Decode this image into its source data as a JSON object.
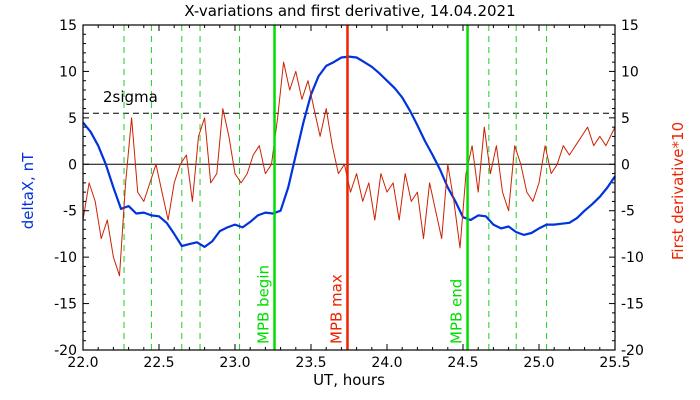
{
  "chart_data": {
    "type": "line",
    "title": "X-variations and first derivative, 14.04.2021",
    "xlabel": "UT, hours",
    "ylabel_left": "deltaX, nT",
    "ylabel_right": "First derivative*10",
    "xlim": [
      22.0,
      25.5
    ],
    "ylim": [
      -20,
      15
    ],
    "x_ticks": [
      "22.0",
      "22.5",
      "23.0",
      "23.5",
      "24.0",
      "24.5",
      "25.0",
      "25.5"
    ],
    "y_ticks": [
      "-20",
      "-15",
      "-10",
      "-5",
      "0",
      "5",
      "10",
      "15"
    ],
    "sigma_level": 5.5,
    "sigma_label": "2sigma",
    "green_dashed_x": [
      22.27,
      22.45,
      22.65,
      22.77,
      23.03,
      24.67,
      24.85,
      25.05
    ],
    "markers": [
      {
        "label": "MPB begin",
        "x": 23.26,
        "color": "#00dd00"
      },
      {
        "label": "MPB max",
        "x": 23.74,
        "color": "#ee2200"
      },
      {
        "label": "MPB end",
        "x": 24.53,
        "color": "#00dd00"
      }
    ],
    "series": [
      {
        "name": "deltaX",
        "color": "#0033dd",
        "x": [
          22.0,
          22.05,
          22.1,
          22.15,
          22.2,
          22.25,
          22.3,
          22.35,
          22.4,
          22.45,
          22.5,
          22.55,
          22.6,
          22.65,
          22.7,
          22.75,
          22.8,
          22.85,
          22.9,
          22.95,
          23.0,
          23.05,
          23.1,
          23.15,
          23.2,
          23.25,
          23.3,
          23.35,
          23.4,
          23.45,
          23.5,
          23.55,
          23.6,
          23.65,
          23.7,
          23.75,
          23.8,
          23.85,
          23.9,
          23.95,
          24.0,
          24.05,
          24.1,
          24.15,
          24.2,
          24.25,
          24.3,
          24.35,
          24.4,
          24.45,
          24.5,
          24.55,
          24.6,
          24.65,
          24.7,
          24.75,
          24.8,
          24.85,
          24.9,
          24.95,
          25.0,
          25.05,
          25.1,
          25.15,
          25.2,
          25.25,
          25.3,
          25.35,
          25.4,
          25.45,
          25.5
        ],
        "values": [
          4.5,
          3.5,
          2.0,
          0.0,
          -2.5,
          -4.8,
          -4.5,
          -5.3,
          -5.2,
          -5.5,
          -5.6,
          -6.3,
          -7.5,
          -8.8,
          -8.6,
          -8.4,
          -8.9,
          -8.3,
          -7.2,
          -6.8,
          -6.5,
          -6.8,
          -6.2,
          -5.5,
          -5.2,
          -5.3,
          -5.0,
          -2.5,
          1.0,
          4.5,
          7.5,
          9.5,
          10.6,
          11.0,
          11.5,
          11.6,
          11.5,
          11.0,
          10.5,
          9.8,
          9.0,
          8.2,
          7.2,
          5.8,
          4.2,
          2.5,
          1.0,
          -0.6,
          -2.5,
          -4.0,
          -5.7,
          -6.0,
          -5.5,
          -5.6,
          -6.5,
          -6.9,
          -6.7,
          -7.3,
          -7.6,
          -7.4,
          -6.9,
          -6.5,
          -6.5,
          -6.4,
          -6.3,
          -5.8,
          -5.0,
          -4.3,
          -3.5,
          -2.5,
          -1.3
        ]
      },
      {
        "name": "First derivative*10",
        "color": "#cc2200",
        "x": [
          22.0,
          22.04,
          22.08,
          22.12,
          22.16,
          22.2,
          22.24,
          22.28,
          22.32,
          22.36,
          22.4,
          22.44,
          22.48,
          22.52,
          22.56,
          22.6,
          22.64,
          22.68,
          22.72,
          22.76,
          22.8,
          22.84,
          22.88,
          22.92,
          22.96,
          23.0,
          23.04,
          23.08,
          23.12,
          23.16,
          23.2,
          23.24,
          23.28,
          23.32,
          23.36,
          23.4,
          23.44,
          23.48,
          23.52,
          23.56,
          23.6,
          23.64,
          23.68,
          23.72,
          23.76,
          23.8,
          23.84,
          23.88,
          23.92,
          23.96,
          24.0,
          24.04,
          24.08,
          24.12,
          24.16,
          24.2,
          24.24,
          24.28,
          24.32,
          24.36,
          24.4,
          24.44,
          24.48,
          24.52,
          24.56,
          24.6,
          24.64,
          24.68,
          24.72,
          24.76,
          24.8,
          24.84,
          24.88,
          24.92,
          24.96,
          25.0,
          25.04,
          25.08,
          25.12,
          25.16,
          25.2,
          25.24,
          25.28,
          25.32,
          25.36,
          25.4,
          25.44,
          25.5
        ],
        "values": [
          -6,
          -2,
          -4,
          -8,
          -6,
          -10,
          -12,
          -2,
          5,
          -3,
          -4,
          -2,
          0,
          -3,
          -6,
          -2,
          0,
          1,
          -4,
          3,
          5,
          -2,
          -1,
          6,
          3,
          -1,
          -2,
          -1,
          1,
          2,
          -1,
          0,
          5,
          11,
          8,
          10,
          7,
          9,
          6,
          3,
          6,
          2,
          -1,
          0,
          -3,
          -1,
          -4,
          -2,
          -6,
          -1,
          -3,
          -2,
          -6,
          -1,
          -4,
          -3,
          -8,
          -2,
          -5,
          -8,
          0,
          -4,
          -9,
          -1,
          2,
          -3,
          4,
          -1,
          2,
          -3,
          -5,
          2,
          0,
          -3,
          -4,
          -2,
          2,
          -1,
          0,
          2,
          1,
          2,
          3,
          4,
          2,
          3,
          2,
          4
        ]
      }
    ]
  }
}
